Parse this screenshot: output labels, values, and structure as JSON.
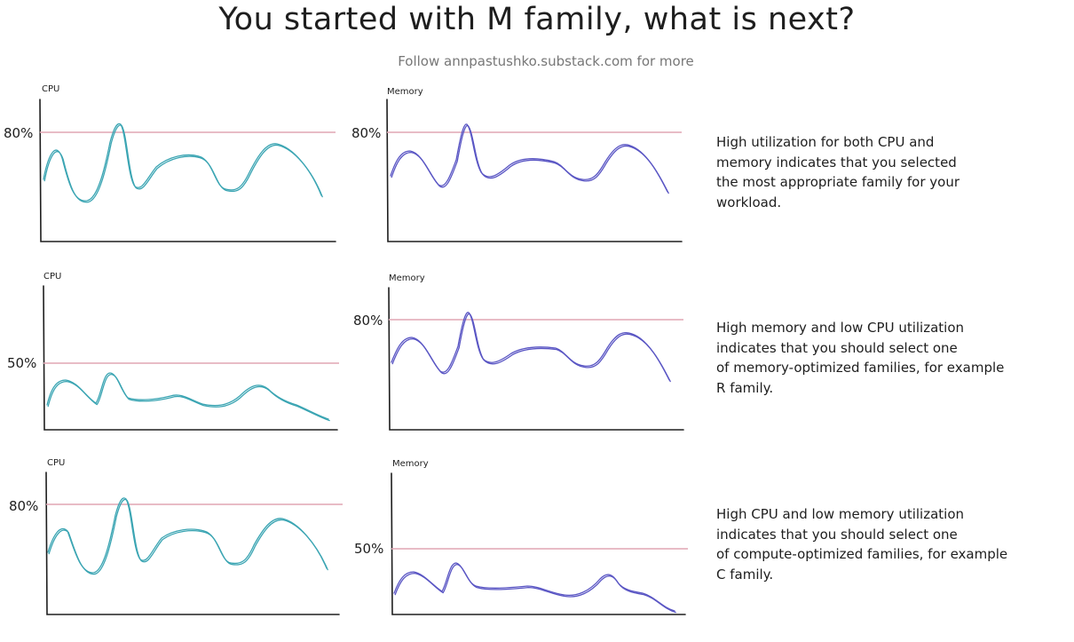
{
  "title": "You started with M family, what is next?",
  "subtitle": "Follow annpastushko.substack.com for more",
  "colors": {
    "cpu_line": "#3ba5b3",
    "memory_line": "#5a56c4",
    "threshold_line": "#e0a6b4",
    "ink": "#1e1e1e"
  },
  "rows": [
    {
      "cpu": {
        "label": "CPU",
        "threshold_label": "80%"
      },
      "memory": {
        "label": "Memory",
        "threshold_label": "80%"
      },
      "description": "High utilization for both CPU and\nmemory indicates that you selected\nthe most appropriate family for your\nworkload."
    },
    {
      "cpu": {
        "label": "CPU",
        "threshold_label": "50%"
      },
      "memory": {
        "label": "Memory",
        "threshold_label": "80%"
      },
      "description": "High memory and low CPU utilization\nindicates that you should select one\nof memory-optimized families, for example\nR family."
    },
    {
      "cpu": {
        "label": "CPU",
        "threshold_label": "80%"
      },
      "memory": {
        "label": "Memory",
        "threshold_label": "50%"
      },
      "description": "High CPU and low memory utilization\nindicates that you should select one\nof compute-optimized families, for example\nC family."
    }
  ]
}
